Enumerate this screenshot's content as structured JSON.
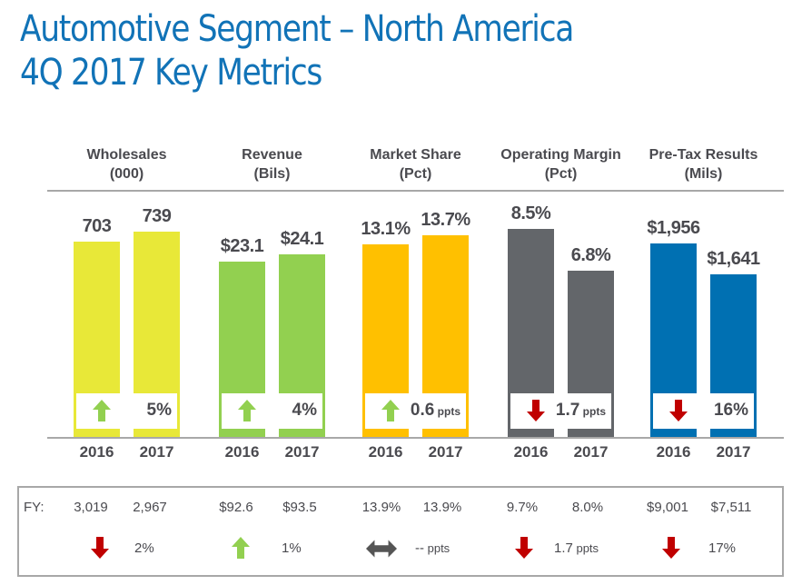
{
  "title": {
    "line1": "Automotive Segment – North America",
    "line2": "4Q 2017 Key Metrics"
  },
  "colors": {
    "title": "#1173b7",
    "wholesales": "#e8e838",
    "revenue": "#92d050",
    "market_share": "#ffc000",
    "operating_margin": "#63666a",
    "pretax": "#0070b2",
    "arrow_up": "#92d050",
    "arrow_down": "#c00000",
    "arrow_flat": "#555555"
  },
  "chart_data": {
    "type": "bar",
    "title": "Automotive Segment – North America 4Q 2017 Key Metrics",
    "categories": [
      "2016",
      "2017"
    ],
    "panels": [
      {
        "key": "wholesales",
        "name": "Wholesales",
        "unit": "(000)",
        "values": [
          703,
          739
        ],
        "labels": [
          "703",
          "739"
        ],
        "change": {
          "direction": "up",
          "value": "5%",
          "unit": ""
        },
        "fy": {
          "values": [
            "3,019",
            "2,967"
          ],
          "direction": "down",
          "change": "2%",
          "unit": ""
        }
      },
      {
        "key": "revenue",
        "name": "Revenue",
        "unit": "(Bils)",
        "values": [
          23.1,
          24.1
        ],
        "labels": [
          "$23.1",
          "$24.1"
        ],
        "change": {
          "direction": "up",
          "value": "4%",
          "unit": ""
        },
        "fy": {
          "values": [
            "$92.6",
            "$93.5"
          ],
          "direction": "up",
          "change": "1%",
          "unit": ""
        }
      },
      {
        "key": "market_share",
        "name": "Market Share",
        "unit": "(Pct)",
        "values": [
          13.1,
          13.7
        ],
        "labels": [
          "13.1%",
          "13.7%"
        ],
        "change": {
          "direction": "up",
          "value": "0.6",
          "unit": "ppts"
        },
        "fy": {
          "values": [
            "13.9%",
            "13.9%"
          ],
          "direction": "flat",
          "change": "--",
          "unit": "ppts"
        }
      },
      {
        "key": "operating_margin",
        "name": "Operating Margin",
        "unit": "(Pct)",
        "values": [
          8.5,
          6.8
        ],
        "labels": [
          "8.5%",
          "6.8%"
        ],
        "change": {
          "direction": "down",
          "value": "1.7",
          "unit": "ppts"
        },
        "fy": {
          "values": [
            "9.7%",
            "8.0%"
          ],
          "direction": "down",
          "change": "1.7",
          "unit": "ppts"
        }
      },
      {
        "key": "pretax",
        "name": "Pre-Tax Results",
        "unit": "(Mils)",
        "values": [
          1956,
          1641
        ],
        "labels": [
          "$1,956",
          "$1,641"
        ],
        "change": {
          "direction": "down",
          "value": "16%",
          "unit": ""
        },
        "fy": {
          "values": [
            "$9,001",
            "$7,511"
          ],
          "direction": "down",
          "change": "17%",
          "unit": ""
        }
      }
    ],
    "fy_label": "FY:",
    "grid": false,
    "legend": "none"
  }
}
